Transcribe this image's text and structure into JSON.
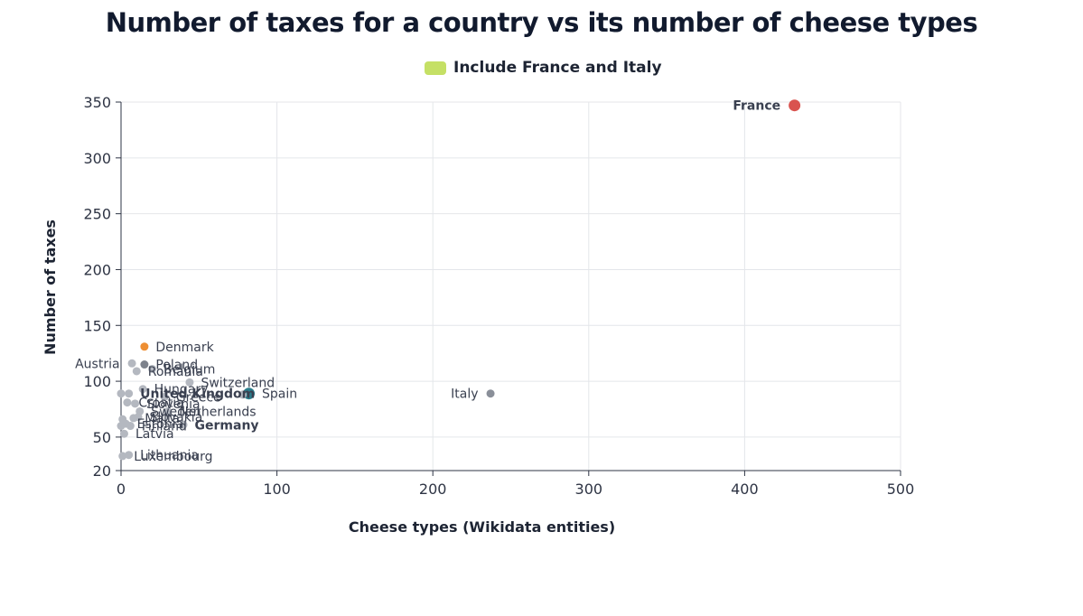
{
  "chart_data": {
    "type": "scatter",
    "title": "Number of taxes for a country vs its number of cheese types",
    "legend": {
      "label": "Include France and Italy",
      "color": "#c5e065",
      "placement": "top-center"
    },
    "xlabel": "Cheese types (Wikidata entities)",
    "ylabel": "Number of taxes",
    "xlim": [
      0,
      500
    ],
    "ylim": [
      20,
      350
    ],
    "xticks": [
      0,
      100,
      200,
      300,
      400,
      500
    ],
    "yticks": [
      20,
      50,
      100,
      150,
      200,
      250,
      300,
      350
    ],
    "grid": true,
    "points": [
      {
        "label": "France",
        "x": 432,
        "y": 347,
        "color": "#d9534f",
        "size": "large",
        "bold": true,
        "label_side": "left"
      },
      {
        "label": "Italy",
        "x": 237,
        "y": 89,
        "color": "#8a8f99",
        "size": "small",
        "bold": false,
        "label_side": "left"
      },
      {
        "label": "Spain",
        "x": 82,
        "y": 89,
        "color": "#2a7d8c",
        "size": "large",
        "bold": false,
        "label_side": "right"
      },
      {
        "label": "",
        "x": 78,
        "y": 88,
        "color": "#b4b8c0",
        "size": "small",
        "bold": false,
        "label_side": "none"
      },
      {
        "label": "Denmark",
        "x": 15,
        "y": 131,
        "color": "#ee8f33",
        "size": "small",
        "bold": false,
        "label_side": "right"
      },
      {
        "label": "Austria",
        "x": 7,
        "y": 116,
        "color": "#b4b8c0",
        "size": "small",
        "bold": false,
        "label_side": "left"
      },
      {
        "label": "Poland",
        "x": 15,
        "y": 115,
        "color": "#7d828c",
        "size": "small",
        "bold": false,
        "label_side": "right"
      },
      {
        "label": "Romania",
        "x": 10,
        "y": 109,
        "color": "#b4b8c0",
        "size": "small",
        "bold": false,
        "label_side": "right"
      },
      {
        "label": "Belgium",
        "x": 20,
        "y": 111,
        "color": "#b4b8c0",
        "size": "small",
        "bold": false,
        "label_side": "right"
      },
      {
        "label": "Switzerland",
        "x": 44,
        "y": 99,
        "color": "#b4b8c0",
        "size": "small",
        "bold": false,
        "label_side": "right"
      },
      {
        "label": "Hungary",
        "x": 14,
        "y": 93,
        "color": "#b4b8c0",
        "size": "small",
        "bold": false,
        "label_side": "right"
      },
      {
        "label": "United Kingdom",
        "x": 5,
        "y": 89,
        "color": "#b4b8c0",
        "size": "small",
        "bold": true,
        "label_side": "right"
      },
      {
        "label": "",
        "x": 0,
        "y": 89,
        "color": "#b4b8c0",
        "size": "small",
        "bold": false,
        "label_side": "none"
      },
      {
        "label": "Greece",
        "x": 28,
        "y": 86,
        "color": "#b4b8c0",
        "size": "small",
        "bold": false,
        "label_side": "right"
      },
      {
        "label": "Croatia",
        "x": 4,
        "y": 81,
        "color": "#b4b8c0",
        "size": "small",
        "bold": false,
        "label_side": "right"
      },
      {
        "label": "Slovenia",
        "x": 9,
        "y": 80,
        "color": "#b4b8c0",
        "size": "small",
        "bold": false,
        "label_side": "right"
      },
      {
        "label": "Sweden",
        "x": 12,
        "y": 73,
        "color": "#b4b8c0",
        "size": "small",
        "bold": false,
        "label_side": "right"
      },
      {
        "label": "Netherlands",
        "x": 30,
        "y": 73,
        "color": "#b4b8c0",
        "size": "small",
        "bold": false,
        "label_side": "right"
      },
      {
        "label": "Malta",
        "x": 8,
        "y": 67,
        "color": "#b4b8c0",
        "size": "small",
        "bold": false,
        "label_side": "right"
      },
      {
        "label": "Slovakia",
        "x": 11,
        "y": 68,
        "color": "#b4b8c0",
        "size": "small",
        "bold": false,
        "label_side": "right"
      },
      {
        "label": "",
        "x": 1,
        "y": 66,
        "color": "#b4b8c0",
        "size": "small",
        "bold": false,
        "label_side": "none"
      },
      {
        "label": "Estonia",
        "x": 3,
        "y": 62,
        "color": "#b4b8c0",
        "size": "small",
        "bold": false,
        "label_side": "right"
      },
      {
        "label": "Finland",
        "x": 6,
        "y": 60,
        "color": "#b4b8c0",
        "size": "small",
        "bold": false,
        "label_side": "right"
      },
      {
        "label": "Germany",
        "x": 40,
        "y": 61,
        "color": "#b4b8c0",
        "size": "small",
        "bold": true,
        "label_side": "right"
      },
      {
        "label": "",
        "x": 0,
        "y": 60,
        "color": "#b4b8c0",
        "size": "small",
        "bold": false,
        "label_side": "none"
      },
      {
        "label": "Latvia",
        "x": 2,
        "y": 53,
        "color": "#b4b8c0",
        "size": "small",
        "bold": false,
        "label_side": "right"
      },
      {
        "label": "Lithuania",
        "x": 5,
        "y": 34,
        "color": "#b4b8c0",
        "size": "small",
        "bold": false,
        "label_side": "right"
      },
      {
        "label": "Luxembourg",
        "x": 1,
        "y": 33,
        "color": "#b4b8c0",
        "size": "small",
        "bold": false,
        "label_side": "right"
      }
    ]
  }
}
